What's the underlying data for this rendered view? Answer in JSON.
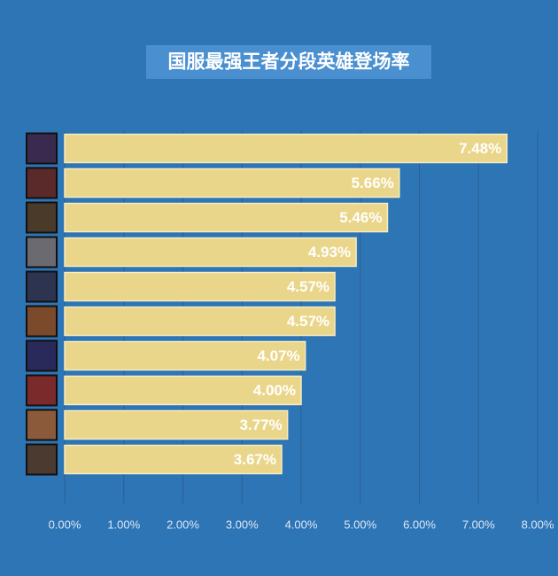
{
  "chart_data": {
    "type": "bar",
    "orientation": "horizontal",
    "title": "国服最强王者分段英雄登场率",
    "categories": [
      null,
      null,
      null,
      null,
      null,
      null,
      null,
      null,
      null,
      null
    ],
    "values": [
      7.48,
      5.66,
      5.46,
      4.93,
      4.57,
      4.57,
      4.07,
      4.0,
      3.77,
      3.67
    ],
    "value_labels": [
      "7.48%",
      "5.66%",
      "5.46%",
      "4.93%",
      "4.57%",
      "4.57%",
      "4.07%",
      "4.00%",
      "3.77%",
      "3.67%"
    ],
    "color": "#ead68a",
    "xlim": [
      0,
      8
    ],
    "xticks": [
      {
        "value": 0,
        "label": "0.00%"
      },
      {
        "value": 1,
        "label": "1.00%"
      },
      {
        "value": 2,
        "label": "2.00%"
      },
      {
        "value": 3,
        "label": "3.00%"
      },
      {
        "value": 4,
        "label": "4.00%"
      },
      {
        "value": 5,
        "label": "5.00%"
      },
      {
        "value": 6,
        "label": "6.00%"
      },
      {
        "value": 7,
        "label": "7.00%"
      },
      {
        "value": 8,
        "label": "8.00%"
      }
    ],
    "grid": true
  }
}
